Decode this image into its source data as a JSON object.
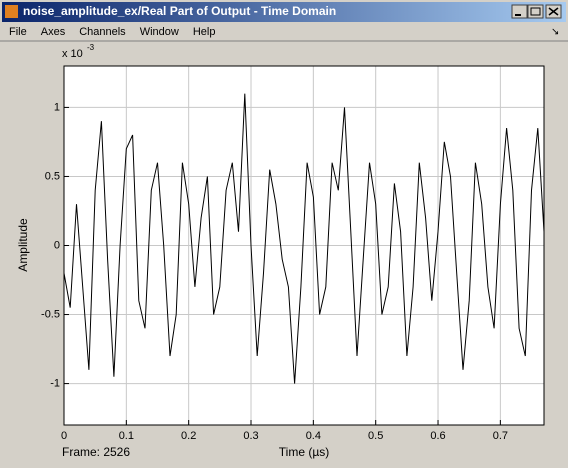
{
  "window": {
    "title": "noise_amplitude_ex/Real Part  of Output -  Time Domain",
    "menu": [
      "File",
      "Axes",
      "Channels",
      "Window",
      "Help"
    ],
    "status": "Frame: 2526"
  },
  "chart_data": {
    "type": "line",
    "y_multiplier": "x 10",
    "y_multiplier_exp": "-3",
    "ylabel": "Amplitude",
    "xlabel": "Time (µs)",
    "xlim": [
      0,
      0.77
    ],
    "ylim": [
      -1.3,
      1.3
    ],
    "xticks": [
      0,
      0.1,
      0.2,
      0.3,
      0.4,
      0.5,
      0.6,
      0.7
    ],
    "yticks": [
      -1,
      -0.5,
      0,
      0.5,
      1
    ],
    "grid": true,
    "series": [
      {
        "color": "#000000",
        "x": [
          0,
          0.01,
          0.02,
          0.03,
          0.04,
          0.05,
          0.06,
          0.07,
          0.08,
          0.09,
          0.1,
          0.11,
          0.12,
          0.13,
          0.14,
          0.15,
          0.16,
          0.17,
          0.18,
          0.19,
          0.2,
          0.21,
          0.22,
          0.23,
          0.24,
          0.25,
          0.26,
          0.27,
          0.28,
          0.29,
          0.3,
          0.31,
          0.32,
          0.33,
          0.34,
          0.35,
          0.36,
          0.37,
          0.38,
          0.39,
          0.4,
          0.41,
          0.42,
          0.43,
          0.44,
          0.45,
          0.46,
          0.47,
          0.48,
          0.49,
          0.5,
          0.51,
          0.52,
          0.53,
          0.54,
          0.55,
          0.56,
          0.57,
          0.58,
          0.59,
          0.6,
          0.61,
          0.62,
          0.63,
          0.64,
          0.65,
          0.66,
          0.67,
          0.68,
          0.69,
          0.7,
          0.71,
          0.72,
          0.73,
          0.74,
          0.75,
          0.76,
          0.77
        ],
        "values": [
          -0.2,
          -0.45,
          0.3,
          -0.3,
          -0.9,
          0.4,
          0.9,
          -0.1,
          -0.95,
          0.0,
          0.7,
          0.8,
          -0.4,
          -0.6,
          0.4,
          0.6,
          0.0,
          -0.8,
          -0.5,
          0.6,
          0.3,
          -0.3,
          0.2,
          0.5,
          -0.5,
          -0.3,
          0.4,
          0.6,
          0.1,
          1.1,
          0.0,
          -0.8,
          -0.2,
          0.55,
          0.3,
          -0.1,
          -0.3,
          -1.0,
          -0.3,
          0.6,
          0.35,
          -0.5,
          -0.3,
          0.6,
          0.4,
          1.0,
          0.1,
          -0.8,
          -0.1,
          0.6,
          0.3,
          -0.5,
          -0.3,
          0.45,
          0.1,
          -0.8,
          -0.3,
          0.6,
          0.2,
          -0.4,
          0.1,
          0.75,
          0.5,
          -0.2,
          -0.9,
          -0.4,
          0.6,
          0.3,
          -0.3,
          -0.6,
          0.3,
          0.85,
          0.4,
          -0.6,
          -0.8,
          0.4,
          0.85,
          0.1
        ]
      }
    ]
  }
}
